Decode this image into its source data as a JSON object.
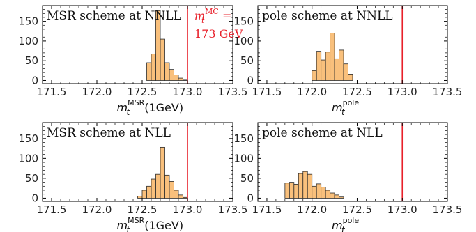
{
  "colors": {
    "bar_fill": "#f9c07c",
    "bar_stroke": "#2a2a2a",
    "reference_line": "#e8202a",
    "frame": "#000000"
  },
  "chart_data": [
    {
      "type": "bar",
      "title": "MSR scheme at NNLL",
      "xlabel": {
        "main": "m",
        "sub": "t",
        "sup": "MSR",
        "tail": "(1GeV)"
      },
      "xlim": [
        171.4,
        173.5
      ],
      "ylim": [
        -8,
        190
      ],
      "xticks": [
        "171.5",
        "172.0",
        "172.5",
        "173.0",
        "173.5"
      ],
      "yticks": [
        "0",
        "50",
        "100",
        "150"
      ],
      "bin_width": 0.05,
      "bins": [
        {
          "x": 172.575,
          "value": 45
        },
        {
          "x": 172.625,
          "value": 67
        },
        {
          "x": 172.675,
          "value": 177
        },
        {
          "x": 172.725,
          "value": 105
        },
        {
          "x": 172.775,
          "value": 45
        },
        {
          "x": 172.825,
          "value": 28
        },
        {
          "x": 172.875,
          "value": 14
        },
        {
          "x": 172.925,
          "value": 6
        },
        {
          "x": 172.975,
          "value": 1
        }
      ],
      "reference_line": 173.0,
      "reference_label": {
        "sym": "m",
        "sub": "t",
        "sup": "MC",
        "eq": " =",
        "line2": "173 GeV"
      }
    },
    {
      "type": "bar",
      "title": "pole scheme at NNLL",
      "xlabel": {
        "main": "m",
        "sub": "t",
        "sup": "pole",
        "tail": ""
      },
      "xlim": [
        171.4,
        173.5
      ],
      "ylim": [
        -8,
        190
      ],
      "xticks": [
        "171.5",
        "172.0",
        "172.5",
        "173.0",
        "173.5"
      ],
      "yticks": [
        "0",
        "50",
        "100",
        "150"
      ],
      "bin_width": 0.05,
      "bins": [
        {
          "x": 172.025,
          "value": 25
        },
        {
          "x": 172.075,
          "value": 74
        },
        {
          "x": 172.125,
          "value": 52
        },
        {
          "x": 172.175,
          "value": 72
        },
        {
          "x": 172.225,
          "value": 120
        },
        {
          "x": 172.275,
          "value": 55
        },
        {
          "x": 172.325,
          "value": 77
        },
        {
          "x": 172.375,
          "value": 42
        },
        {
          "x": 172.425,
          "value": 16
        }
      ],
      "reference_line": 173.0
    },
    {
      "type": "bar",
      "title": "MSR scheme at NLL",
      "xlabel": {
        "main": "m",
        "sub": "t",
        "sup": "MSR",
        "tail": "(1GeV)"
      },
      "xlim": [
        171.4,
        173.5
      ],
      "ylim": [
        -8,
        190
      ],
      "xticks": [
        "171.5",
        "172.0",
        "172.5",
        "173.0",
        "173.5"
      ],
      "yticks": [
        "0",
        "50",
        "100",
        "150"
      ],
      "bin_width": 0.05,
      "bins": [
        {
          "x": 172.475,
          "value": 5
        },
        {
          "x": 172.525,
          "value": 20
        },
        {
          "x": 172.575,
          "value": 30
        },
        {
          "x": 172.625,
          "value": 48
        },
        {
          "x": 172.675,
          "value": 60
        },
        {
          "x": 172.725,
          "value": 128
        },
        {
          "x": 172.775,
          "value": 58
        },
        {
          "x": 172.825,
          "value": 42
        },
        {
          "x": 172.875,
          "value": 20
        },
        {
          "x": 172.925,
          "value": 8
        },
        {
          "x": 172.975,
          "value": 2
        }
      ],
      "reference_line": 173.0
    },
    {
      "type": "bar",
      "title": "pole scheme at NLL",
      "xlabel": {
        "main": "m",
        "sub": "t",
        "sup": "pole",
        "tail": ""
      },
      "xlim": [
        171.4,
        173.5
      ],
      "ylim": [
        -8,
        190
      ],
      "xticks": [
        "171.5",
        "172.0",
        "172.5",
        "173.0",
        "173.5"
      ],
      "yticks": [
        "0",
        "50",
        "100",
        "150"
      ],
      "bin_width": 0.05,
      "bins": [
        {
          "x": 171.725,
          "value": 38
        },
        {
          "x": 171.775,
          "value": 40
        },
        {
          "x": 171.825,
          "value": 35
        },
        {
          "x": 171.875,
          "value": 62
        },
        {
          "x": 171.925,
          "value": 67
        },
        {
          "x": 171.975,
          "value": 60
        },
        {
          "x": 172.025,
          "value": 30
        },
        {
          "x": 172.075,
          "value": 36
        },
        {
          "x": 172.125,
          "value": 28
        },
        {
          "x": 172.175,
          "value": 20
        },
        {
          "x": 172.225,
          "value": 13
        },
        {
          "x": 172.275,
          "value": 8
        },
        {
          "x": 172.325,
          "value": 3
        }
      ],
      "reference_line": 173.0
    }
  ]
}
